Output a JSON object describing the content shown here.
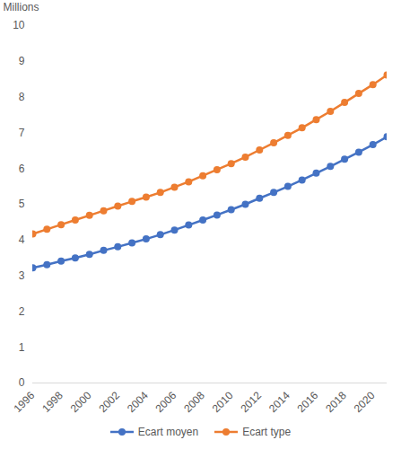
{
  "chart_data": {
    "type": "line",
    "y_label": "Millions",
    "x": [
      1996,
      1997,
      1998,
      1999,
      2000,
      2001,
      2002,
      2003,
      2004,
      2005,
      2006,
      2007,
      2008,
      2009,
      2010,
      2011,
      2012,
      2013,
      2014,
      2015,
      2016,
      2017,
      2018,
      2019,
      2020,
      2021
    ],
    "series": [
      {
        "name": "Ecart moyen",
        "color": "#4472c4",
        "marker": "circle",
        "values": [
          3.22,
          3.31,
          3.41,
          3.5,
          3.6,
          3.71,
          3.81,
          3.92,
          4.03,
          4.15,
          4.28,
          4.42,
          4.56,
          4.7,
          4.85,
          5.0,
          5.17,
          5.33,
          5.5,
          5.68,
          5.87,
          6.06,
          6.26,
          6.46,
          6.67,
          6.89
        ]
      },
      {
        "name": "Ecart type",
        "color": "#ed7d31",
        "marker": "circle",
        "values": [
          4.17,
          4.3,
          4.43,
          4.56,
          4.69,
          4.82,
          4.95,
          5.08,
          5.2,
          5.33,
          5.48,
          5.63,
          5.8,
          5.97,
          6.14,
          6.32,
          6.52,
          6.72,
          6.93,
          7.14,
          7.37,
          7.6,
          7.85,
          8.1,
          8.35,
          8.62
        ]
      }
    ],
    "xlim": [
      1996,
      2021
    ],
    "xticks": [
      1996,
      1998,
      2000,
      2002,
      2004,
      2006,
      2008,
      2010,
      2012,
      2014,
      2016,
      2018,
      2020
    ],
    "ylim": [
      0,
      10
    ],
    "yticks": [
      0,
      1,
      2,
      3,
      4,
      5,
      6,
      7,
      8,
      9,
      10
    ],
    "grid": false,
    "legend": "bottom"
  }
}
